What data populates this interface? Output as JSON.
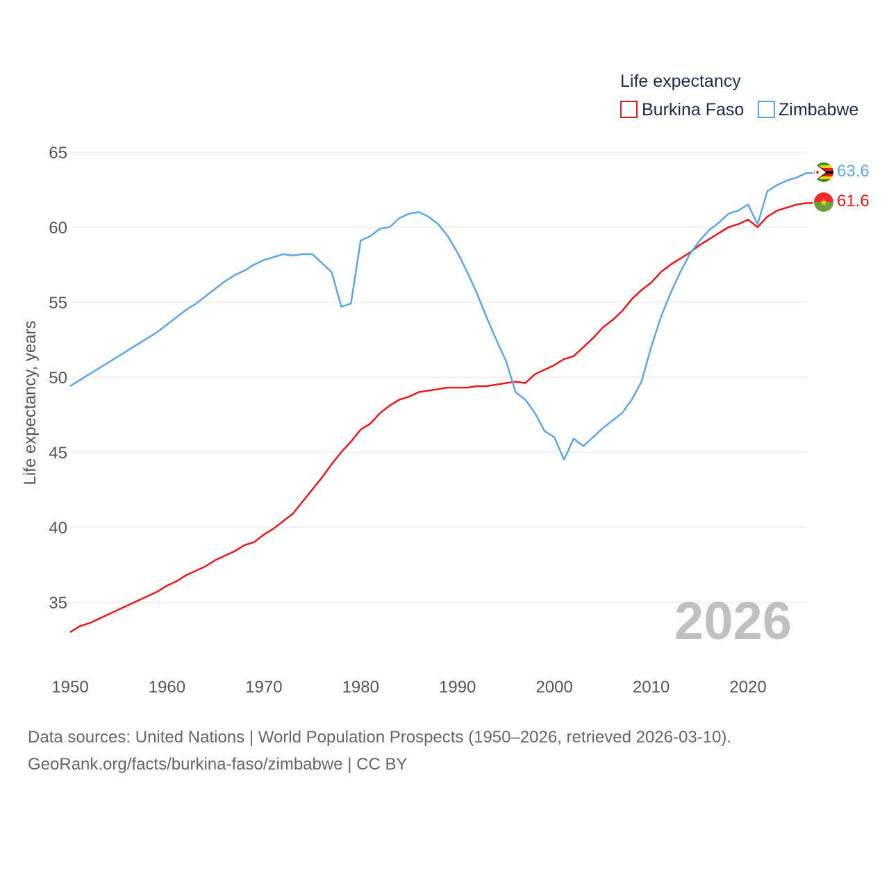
{
  "chart_data": {
    "type": "line",
    "title": "Life expectancy",
    "ylabel": "Life expectancy, years",
    "xlabel": "",
    "ylim": [
      32,
      66
    ],
    "xlim": [
      1950,
      2026
    ],
    "yticks": [
      35,
      40,
      45,
      50,
      55,
      60,
      65
    ],
    "xticks": [
      1950,
      1960,
      1970,
      1980,
      1990,
      2000,
      2010,
      2020
    ],
    "grid": true,
    "legend_position": "top-right",
    "current_year": "2026",
    "x": [
      1950,
      1951,
      1952,
      1953,
      1954,
      1955,
      1956,
      1957,
      1958,
      1959,
      1960,
      1961,
      1962,
      1963,
      1964,
      1965,
      1966,
      1967,
      1968,
      1969,
      1970,
      1971,
      1972,
      1973,
      1974,
      1975,
      1976,
      1977,
      1978,
      1979,
      1980,
      1981,
      1982,
      1983,
      1984,
      1985,
      1986,
      1987,
      1988,
      1989,
      1990,
      1991,
      1992,
      1993,
      1994,
      1995,
      1996,
      1997,
      1998,
      1999,
      2000,
      2001,
      2002,
      2003,
      2004,
      2005,
      2006,
      2007,
      2008,
      2009,
      2010,
      2011,
      2012,
      2013,
      2014,
      2015,
      2016,
      2017,
      2018,
      2019,
      2020,
      2021,
      2022,
      2023,
      2024,
      2025,
      2026
    ],
    "series": [
      {
        "name": "Burkina Faso",
        "color": "#e8191c",
        "end_label": "61.6",
        "flag": "burkina-faso-flag",
        "values": [
          33.0,
          33.4,
          33.6,
          33.9,
          34.2,
          34.5,
          34.8,
          35.1,
          35.4,
          35.7,
          36.1,
          36.4,
          36.8,
          37.1,
          37.4,
          37.8,
          38.1,
          38.4,
          38.8,
          39.0,
          39.5,
          39.9,
          40.4,
          40.9,
          41.7,
          42.5,
          43.3,
          44.2,
          45.0,
          45.7,
          46.5,
          46.9,
          47.6,
          48.1,
          48.5,
          48.7,
          49.0,
          49.1,
          49.2,
          49.3,
          49.3,
          49.3,
          49.4,
          49.4,
          49.5,
          49.6,
          49.7,
          49.6,
          50.2,
          50.5,
          50.8,
          51.2,
          51.4,
          52.0,
          52.6,
          53.3,
          53.8,
          54.4,
          55.2,
          55.8,
          56.3,
          57.0,
          57.5,
          57.9,
          58.3,
          58.8,
          59.2,
          59.6,
          60.0,
          60.2,
          60.5,
          60.0,
          60.7,
          61.1,
          61.3,
          61.5,
          61.6
        ]
      },
      {
        "name": "Zimbabwe",
        "color": "#5ea6e5",
        "end_label": "63.6",
        "flag": "zimbabwe-flag",
        "values": [
          49.4,
          49.8,
          50.2,
          50.6,
          51.0,
          51.4,
          51.8,
          52.2,
          52.6,
          53.0,
          53.5,
          54.0,
          54.5,
          54.9,
          55.4,
          55.9,
          56.4,
          56.8,
          57.1,
          57.5,
          57.8,
          58.0,
          58.2,
          58.1,
          58.2,
          58.2,
          57.6,
          57.0,
          54.7,
          54.9,
          59.1,
          59.4,
          59.9,
          60.0,
          60.6,
          60.9,
          61.0,
          60.7,
          60.2,
          59.4,
          58.3,
          57.0,
          55.6,
          54.0,
          52.5,
          51.1,
          49.0,
          48.5,
          47.6,
          46.4,
          46.0,
          44.5,
          45.9,
          45.4,
          46.0,
          46.6,
          47.1,
          47.6,
          48.5,
          49.7,
          52.0,
          54.0,
          55.6,
          57.0,
          58.2,
          59.1,
          59.8,
          60.3,
          60.9,
          61.1,
          61.5,
          60.2,
          62.4,
          62.8,
          63.1,
          63.3,
          63.6
        ]
      }
    ]
  },
  "legend": {
    "title": "Life expectancy",
    "items": [
      "Burkina Faso",
      "Zimbabwe"
    ]
  },
  "footer": {
    "source_line": "Data sources: United Nations | World Population Prospects (1950–2026, retrieved 2026-03-10).",
    "credit_line": "GeoRank.org/facts/burkina-faso/zimbabwe | CC BY"
  }
}
